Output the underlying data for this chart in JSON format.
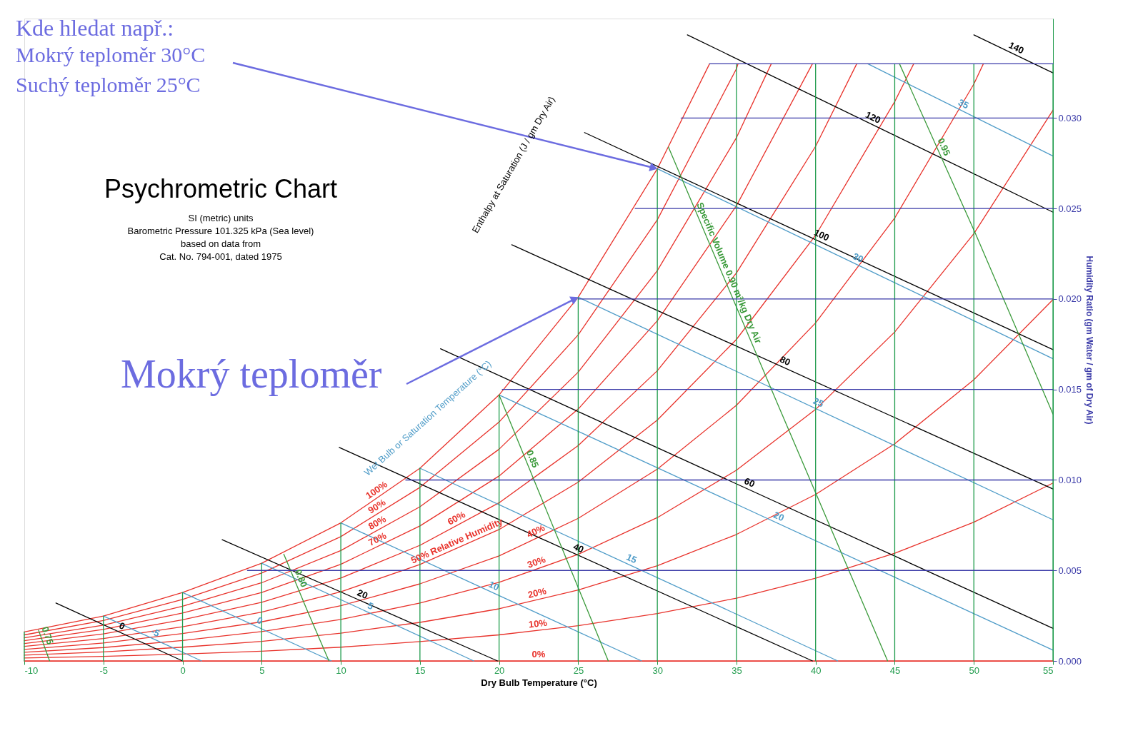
{
  "chart_data": {
    "type": "line",
    "title": "Psychrometric Chart",
    "subtitle": [
      "SI (metric) units",
      "Barometric Pressure 101.325 kPa (Sea level)",
      "based on data from",
      "Cat. No. 794-001, dated 1975"
    ],
    "xlabel": "Dry Bulb Temperature (°C)",
    "ylabel": "Humidity Ratio (gm Water / gm of Dry Air)",
    "xlim": [
      -10,
      55
    ],
    "ylim": [
      0,
      0.0355
    ],
    "xticks": [
      -10,
      -5,
      0,
      5,
      10,
      15,
      20,
      25,
      30,
      35,
      40,
      45,
      50,
      55
    ],
    "yticks": [
      {
        "value": 0,
        "label": "0.000"
      },
      {
        "value": 0.005,
        "label": "0.005"
      },
      {
        "value": 0.01,
        "label": "0.010"
      },
      {
        "value": 0.015,
        "label": "0.015"
      },
      {
        "value": 0.02,
        "label": "0.020"
      },
      {
        "value": 0.025,
        "label": "0.025"
      },
      {
        "value": 0.03,
        "label": "0.030"
      }
    ],
    "grid": false,
    "legend": false,
    "marker": "none",
    "line_style": "solid",
    "annotations": [
      "Kde hledat např.:",
      {
        "text": "Mokrý teploměr  30°C",
        "x": 30,
        "y": 0.0272
      },
      "Suchý teploměr 25°C",
      {
        "text": "Mokrý teploměr",
        "x": 25,
        "y": 0.0201
      },
      "Enthalpy at Saturation (J / gm Dry Air)",
      "Wet Bulb or Saturation Temperature (°C)"
    ],
    "series": [
      {
        "name": "100%",
        "color": "#e8322b",
        "x": [
          -10,
          -5,
          0,
          5,
          10,
          15,
          20,
          25,
          30,
          33.3
        ],
        "values": [
          0.0016,
          0.00248,
          0.00378,
          0.0054,
          0.00763,
          0.01065,
          0.0147,
          0.0201,
          0.0272,
          0.033
        ]
      },
      {
        "name": "90%",
        "color": "#e8322b",
        "x": [
          -10,
          -5,
          0,
          5,
          10,
          15,
          20,
          25,
          30,
          35,
          35.1
        ],
        "values": [
          0.00144,
          0.00223,
          0.0034,
          0.00486,
          0.00687,
          0.00959,
          0.0132,
          0.01802,
          0.02438,
          0.03273,
          0.033
        ]
      },
      {
        "name": "80%",
        "color": "#e8322b",
        "x": [
          -10,
          -5,
          0,
          5,
          10,
          15,
          20,
          25,
          30,
          35,
          37.2
        ],
        "values": [
          0.00128,
          0.00198,
          0.00302,
          0.00432,
          0.0061,
          0.00852,
          0.0117,
          0.01596,
          0.02157,
          0.02892,
          0.033
        ]
      },
      {
        "name": "70%",
        "color": "#e8322b",
        "x": [
          -10,
          -5,
          0,
          5,
          10,
          15,
          20,
          25,
          30,
          35,
          39.8
        ],
        "values": [
          0.00112,
          0.00174,
          0.00265,
          0.00378,
          0.00534,
          0.00746,
          0.01022,
          0.01392,
          0.0188,
          0.02516,
          0.033
        ]
      },
      {
        "name": "60%",
        "color": "#e8322b",
        "x": [
          -10,
          -5,
          0,
          5,
          10,
          15,
          20,
          25,
          30,
          35,
          40,
          42.6
        ],
        "values": [
          0.00096,
          0.00149,
          0.00227,
          0.00324,
          0.00458,
          0.00639,
          0.00874,
          0.0119,
          0.01604,
          0.02144,
          0.02844,
          0.033
        ]
      },
      {
        "name": "50% Relative Humidity",
        "color": "#e8322b",
        "x": [
          -10,
          -5,
          0,
          5,
          10,
          15,
          20,
          25,
          30,
          35,
          40,
          45,
          46.2
        ],
        "values": [
          0.0008,
          0.00124,
          0.00189,
          0.0027,
          0.00382,
          0.00533,
          0.00726,
          0.00988,
          0.01331,
          0.01777,
          0.02352,
          0.03091,
          0.033
        ]
      },
      {
        "name": "40%",
        "color": "#e8322b",
        "x": [
          -10,
          -5,
          0,
          5,
          10,
          15,
          20,
          25,
          30,
          35,
          40,
          45,
          50,
          50.6
        ],
        "values": [
          0.00064,
          0.00099,
          0.00151,
          0.00216,
          0.00305,
          0.00426,
          0.0058,
          0.00788,
          0.0106,
          0.01413,
          0.01868,
          0.02448,
          0.03188,
          0.033
        ]
      },
      {
        "name": "30%",
        "color": "#e8322b",
        "x": [
          -10,
          -5,
          0,
          5,
          10,
          15,
          20,
          25,
          30,
          35,
          40,
          45,
          50,
          55
        ],
        "values": [
          0.00048,
          0.00074,
          0.00113,
          0.00162,
          0.00229,
          0.0032,
          0.00434,
          0.00589,
          0.00792,
          0.01054,
          0.0139,
          0.01818,
          0.02361,
          0.03044
        ]
      },
      {
        "name": "20%",
        "color": "#e8322b",
        "x": [
          -10,
          -5,
          0,
          5,
          10,
          15,
          20,
          25,
          30,
          35,
          40,
          45,
          50,
          55
        ],
        "values": [
          0.00032,
          0.0005,
          0.00076,
          0.00108,
          0.00153,
          0.00213,
          0.00288,
          0.00392,
          0.00526,
          0.00699,
          0.0092,
          0.012,
          0.01554,
          0.01997
        ]
      },
      {
        "name": "10%",
        "color": "#e8322b",
        "x": [
          -10,
          -5,
          0,
          5,
          10,
          15,
          20,
          25,
          30,
          35,
          40,
          45,
          50,
          55
        ],
        "values": [
          0.00016,
          0.00025,
          0.00038,
          0.00054,
          0.00076,
          0.00107,
          0.00144,
          0.00195,
          0.00262,
          0.00347,
          0.00457,
          0.00595,
          0.00767,
          0.00983
        ]
      },
      {
        "name": "0%",
        "color": "#e8322b",
        "x": [
          -10,
          55
        ],
        "values": [
          0,
          0
        ]
      },
      {
        "name": "-5",
        "color": "#4f9cc8",
        "x": [
          -5,
          1.2
        ],
        "values": [
          0.00248,
          0
        ]
      },
      {
        "name": "0",
        "color": "#4f9cc8",
        "x": [
          0,
          9.4
        ],
        "values": [
          0.00378,
          0
        ]
      },
      {
        "name": "5",
        "color": "#4f9cc8",
        "x": [
          5,
          18.4
        ],
        "values": [
          0.0054,
          0
        ]
      },
      {
        "name": "10",
        "color": "#4f9cc8",
        "x": [
          10,
          29
        ],
        "values": [
          0.00763,
          0
        ]
      },
      {
        "name": "15",
        "color": "#4f9cc8",
        "x": [
          15,
          41.4
        ],
        "values": [
          0.01065,
          0
        ]
      },
      {
        "name": "20",
        "color": "#4f9cc8",
        "x": [
          20,
          55
        ],
        "values": [
          0.0147,
          0.0006
        ]
      },
      {
        "name": "25",
        "color": "#4f9cc8",
        "x": [
          25,
          55
        ],
        "values": [
          0.0201,
          0.0078
        ]
      },
      {
        "name": "30",
        "color": "#4f9cc8",
        "x": [
          30,
          55
        ],
        "values": [
          0.0272,
          0.0167
        ]
      },
      {
        "name": "35",
        "color": "#4f9cc8",
        "x": [
          43.3,
          55
        ],
        "values": [
          0.033,
          0.0279
        ]
      },
      {
        "name": "0",
        "color": "#000000",
        "x": [
          -8,
          0
        ],
        "values": [
          0.0032,
          0
        ]
      },
      {
        "name": "20",
        "color": "#000000",
        "x": [
          2.5,
          19.9
        ],
        "values": [
          0.0067,
          0
        ]
      },
      {
        "name": "40",
        "color": "#000000",
        "x": [
          9.9,
          39.8
        ],
        "values": [
          0.0118,
          0
        ]
      },
      {
        "name": "60",
        "color": "#000000",
        "x": [
          16.3,
          55
        ],
        "values": [
          0.01725,
          0.0018
        ]
      },
      {
        "name": "80",
        "color": "#000000",
        "x": [
          20.8,
          55
        ],
        "values": [
          0.023,
          0.0095
        ]
      },
      {
        "name": "100",
        "color": "#000000",
        "x": [
          25.4,
          55
        ],
        "values": [
          0.0292,
          0.0172
        ]
      },
      {
        "name": "120",
        "color": "#000000",
        "x": [
          31.9,
          55
        ],
        "values": [
          0.0346,
          0.0248
        ]
      },
      {
        "name": "140",
        "color": "#000000",
        "x": [
          50,
          55
        ],
        "values": [
          0.0346,
          0.0325
        ]
      },
      {
        "name": "0.75",
        "color": "#3a9a3a",
        "x": [
          -9.1,
          -8.75,
          -8.4
        ],
        "values": [
          0.0017,
          0.00085,
          0
        ]
      },
      {
        "name": "0.80",
        "color": "#3a9a3a",
        "x": [
          6.4,
          7.8,
          9.25
        ],
        "values": [
          0.0059,
          0.00295,
          0
        ]
      },
      {
        "name": "0.85",
        "color": "#3a9a3a",
        "x": [
          20,
          23.45,
          26.9
        ],
        "values": [
          0.0147,
          0.00735,
          0
        ]
      },
      {
        "name": "Specific Volume 0.90 m³/kg Dry Air",
        "color": "#3a9a3a",
        "x": [
          30.7,
          37.6,
          44.55
        ],
        "values": [
          0.0284,
          0.0142,
          0
        ]
      },
      {
        "name": "0.95",
        "color": "#3a9a3a",
        "x": [
          45.3,
          50.15,
          55
        ],
        "values": [
          0.033,
          0.02352,
          0.01364
        ]
      },
      {
        "color": "#1e9b4b",
        "x": [
          -10,
          -10
        ],
        "values": [
          0,
          0.0016
        ]
      },
      {
        "color": "#1e9b4b",
        "x": [
          -5,
          -5
        ],
        "values": [
          0,
          0.00248
        ]
      },
      {
        "color": "#1e9b4b",
        "x": [
          0,
          0
        ],
        "values": [
          0,
          0.00378
        ]
      },
      {
        "color": "#1e9b4b",
        "x": [
          5,
          5
        ],
        "values": [
          0,
          0.0054
        ]
      },
      {
        "color": "#1e9b4b",
        "x": [
          10,
          10
        ],
        "values": [
          0,
          0.00763
        ]
      },
      {
        "color": "#1e9b4b",
        "x": [
          15,
          15
        ],
        "values": [
          0,
          0.01065
        ]
      },
      {
        "color": "#1e9b4b",
        "x": [
          20,
          20
        ],
        "values": [
          0,
          0.0147
        ]
      },
      {
        "color": "#1e9b4b",
        "x": [
          25,
          25
        ],
        "values": [
          0,
          0.0201
        ]
      },
      {
        "color": "#1e9b4b",
        "x": [
          30,
          30
        ],
        "values": [
          0,
          0.0272
        ]
      },
      {
        "color": "#1e9b4b",
        "x": [
          35,
          35
        ],
        "values": [
          0,
          0.033
        ]
      },
      {
        "color": "#1e9b4b",
        "x": [
          40,
          40
        ],
        "values": [
          0,
          0.033
        ]
      },
      {
        "color": "#1e9b4b",
        "x": [
          45,
          45
        ],
        "values": [
          0,
          0.033
        ]
      },
      {
        "color": "#1e9b4b",
        "x": [
          50,
          50
        ],
        "values": [
          0,
          0.033
        ]
      },
      {
        "color": "#1e9b4b",
        "x": [
          55,
          55
        ],
        "values": [
          0,
          0.033
        ]
      },
      {
        "color": "#3a3aa8",
        "x": [
          4.1,
          55
        ],
        "values": [
          0.005,
          0.005
        ]
      },
      {
        "color": "#3a3aa8",
        "x": [
          14.1,
          55
        ],
        "values": [
          0.01,
          0.01
        ]
      },
      {
        "color": "#3a3aa8",
        "x": [
          20.2,
          55
        ],
        "values": [
          0.015,
          0.015
        ]
      },
      {
        "color": "#3a3aa8",
        "x": [
          25,
          55
        ],
        "values": [
          0.02,
          0.02
        ]
      },
      {
        "color": "#3a3aa8",
        "x": [
          28.6,
          55
        ],
        "values": [
          0.025,
          0.025
        ]
      },
      {
        "color": "#3a3aa8",
        "x": [
          31.5,
          55
        ],
        "values": [
          0.03,
          0.03
        ]
      },
      {
        "color": "#3a3aa8",
        "x": [
          33.3,
          55
        ],
        "values": [
          0.033,
          0.033
        ]
      }
    ]
  }
}
